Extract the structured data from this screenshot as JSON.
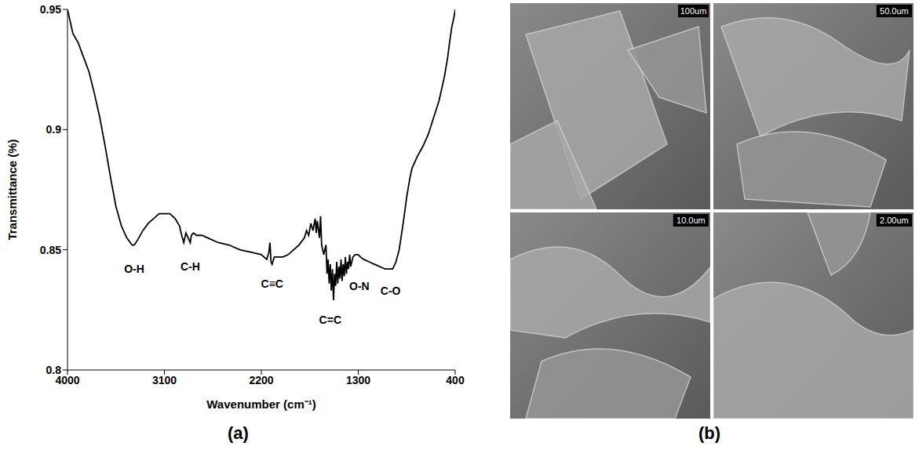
{
  "chart_data": {
    "type": "line",
    "title": "(a)",
    "x_label": "Wavenumber (cm⁻¹)",
    "y_label": "Transmittance (%)",
    "x": [
      4000,
      3950,
      3900,
      3850,
      3800,
      3750,
      3700,
      3650,
      3600,
      3550,
      3500,
      3450,
      3400,
      3380,
      3350,
      3300,
      3250,
      3200,
      3150,
      3100,
      3050,
      3000,
      2960,
      2940,
      2920,
      2900,
      2880,
      2860,
      2850,
      2830,
      2800,
      2750,
      2700,
      2600,
      2500,
      2400,
      2300,
      2200,
      2150,
      2130,
      2120,
      2110,
      2100,
      2080,
      2050,
      2000,
      1950,
      1900,
      1850,
      1800,
      1780,
      1760,
      1740,
      1720,
      1700,
      1690,
      1680,
      1660,
      1650,
      1640,
      1620,
      1600,
      1590,
      1580,
      1570,
      1560,
      1550,
      1540,
      1530,
      1520,
      1510,
      1500,
      1490,
      1480,
      1470,
      1460,
      1450,
      1440,
      1430,
      1420,
      1410,
      1400,
      1390,
      1380,
      1370,
      1350,
      1330,
      1300,
      1280,
      1250,
      1200,
      1150,
      1100,
      1050,
      1000,
      980,
      950,
      920,
      900,
      880,
      850,
      820,
      800,
      750,
      700,
      650,
      600,
      550,
      500,
      470,
      450,
      430,
      410,
      400
    ],
    "values": [
      0.95,
      0.94,
      0.936,
      0.93,
      0.924,
      0.915,
      0.905,
      0.893,
      0.88,
      0.868,
      0.86,
      0.855,
      0.852,
      0.852,
      0.854,
      0.858,
      0.861,
      0.863,
      0.865,
      0.865,
      0.865,
      0.863,
      0.86,
      0.856,
      0.853,
      0.857,
      0.855,
      0.853,
      0.856,
      0.857,
      0.856,
      0.856,
      0.855,
      0.853,
      0.852,
      0.85,
      0.849,
      0.848,
      0.846,
      0.849,
      0.853,
      0.845,
      0.844,
      0.847,
      0.847,
      0.847,
      0.848,
      0.85,
      0.852,
      0.855,
      0.858,
      0.856,
      0.861,
      0.858,
      0.863,
      0.857,
      0.862,
      0.855,
      0.864,
      0.852,
      0.848,
      0.852,
      0.84,
      0.846,
      0.836,
      0.844,
      0.833,
      0.842,
      0.829,
      0.84,
      0.835,
      0.845,
      0.836,
      0.843,
      0.838,
      0.846,
      0.837,
      0.844,
      0.839,
      0.847,
      0.84,
      0.845,
      0.842,
      0.848,
      0.843,
      0.847,
      0.848,
      0.848,
      0.847,
      0.846,
      0.845,
      0.844,
      0.843,
      0.842,
      0.842,
      0.842,
      0.845,
      0.85,
      0.856,
      0.862,
      0.872,
      0.88,
      0.884,
      0.889,
      0.893,
      0.898,
      0.905,
      0.912,
      0.922,
      0.93,
      0.937,
      0.943,
      0.947,
      0.95
    ],
    "color": "#000000",
    "xlim": [
      4000,
      400
    ],
    "xticks": [
      4000,
      3100,
      2200,
      1300,
      400
    ],
    "ylim": [
      0.8,
      0.95
    ],
    "yticks": [
      0.8,
      0.85,
      0.9,
      0.95
    ],
    "grid": false,
    "annotations": [
      {
        "text": "O-H",
        "x": 3380,
        "y": 0.842
      },
      {
        "text": "C-H",
        "x": 2860,
        "y": 0.843
      },
      {
        "text": "C≡C",
        "x": 2100,
        "y": 0.836
      },
      {
        "text": "C=C",
        "x": 1560,
        "y": 0.821
      },
      {
        "text": "O-N",
        "x": 1290,
        "y": 0.835
      },
      {
        "text": "C-O",
        "x": 1000,
        "y": 0.833
      }
    ]
  },
  "figure_b": {
    "label": "(b)",
    "scale_bars": [
      "100um",
      "50.0um",
      "10.0um",
      "2.00um"
    ]
  }
}
